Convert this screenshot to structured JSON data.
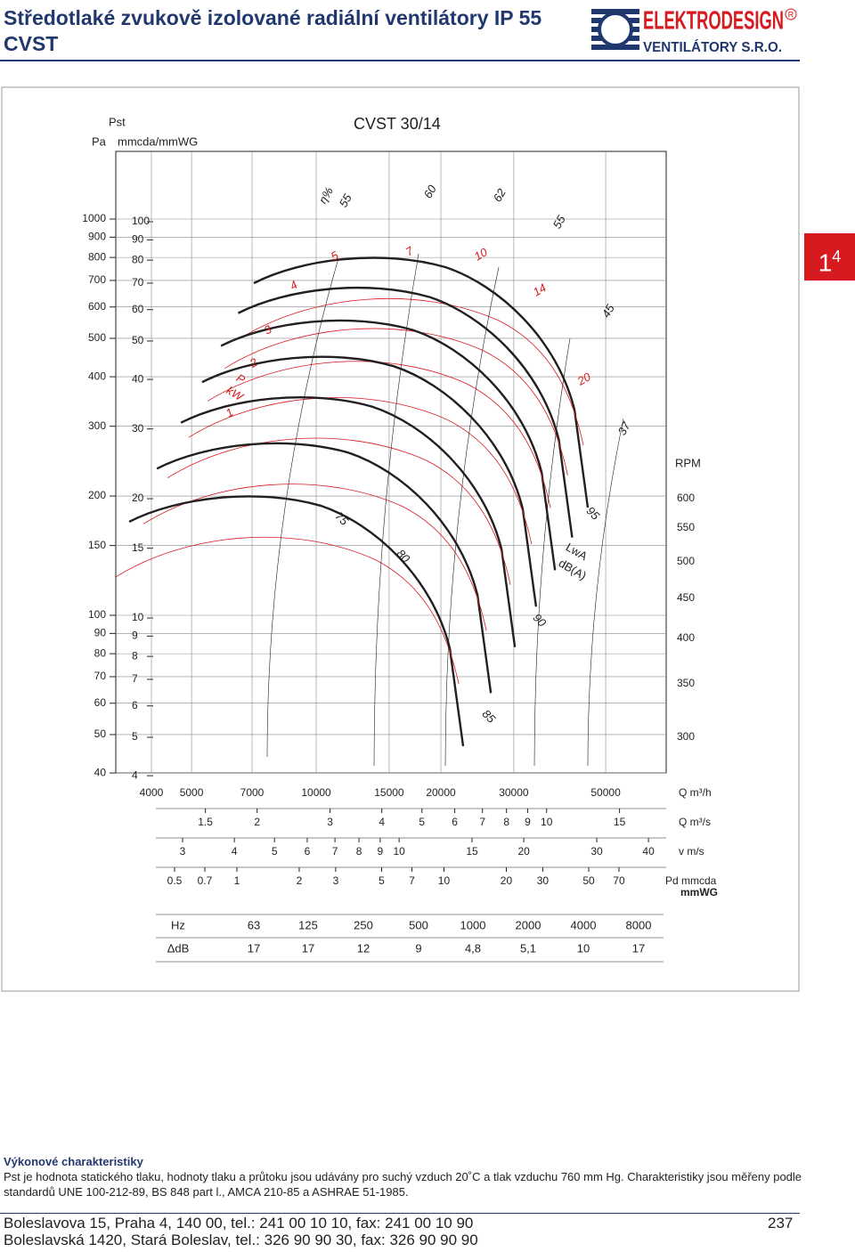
{
  "header": {
    "title_line1": "Středotlaké zvukově izolované radiální ventilátory IP 55",
    "title_line2": "CVST",
    "logo_brand": "ELEKTRODESIGN",
    "logo_sub": "VENTILÁTORY S.R.O.",
    "logo_reg": "R"
  },
  "tab": {
    "main": "1",
    "sup": "4"
  },
  "diagram": {
    "model": "CVST 30/14",
    "pst_label": "Pst",
    "pa_label": "Pa",
    "mmcda_label": "mmcda/mmWG",
    "rpm_label": "RPM",
    "pressure_pa": [
      1000,
      900,
      800,
      700,
      600,
      500,
      400,
      300,
      200,
      150,
      100,
      90,
      80,
      70,
      60,
      50,
      40
    ],
    "pressure_mmcda": [
      100,
      90,
      80,
      70,
      60,
      50,
      40,
      30,
      20,
      15,
      10,
      9,
      8,
      7,
      6,
      5,
      4
    ],
    "rpm": [
      600,
      550,
      500,
      450,
      400,
      350,
      300
    ],
    "flow_m3h": [
      4000,
      5000,
      7000,
      10000,
      15000,
      20000,
      30000,
      50000
    ],
    "flow_m3s": [
      1.5,
      2,
      3,
      4,
      5,
      6,
      7,
      8,
      9,
      10,
      15
    ],
    "velocity": [
      3,
      4,
      5,
      6,
      7,
      8,
      9,
      10,
      15,
      20,
      30,
      40
    ],
    "pd": [
      0.5,
      0.7,
      1,
      2,
      3,
      5,
      7,
      10,
      20,
      30,
      50,
      70
    ],
    "unit_m3h": "Q m³/h",
    "unit_m3s": "Q m³/s",
    "unit_v": "v m/s",
    "unit_pd": "Pd mmcda",
    "unit_pd2": "mmWG",
    "efficiency_label": "η%",
    "efficiency": [
      55,
      60,
      62,
      55,
      45,
      37
    ],
    "power_label_p": "P",
    "power_label_kw": "kW",
    "power": [
      1,
      2,
      3,
      4,
      5,
      7,
      10,
      14,
      20
    ],
    "noise": [
      75,
      80,
      85,
      90,
      95
    ],
    "noise_label1": "LwA",
    "noise_label2": "dB(A)"
  },
  "table": {
    "rows": [
      [
        "Hz",
        "63",
        "125",
        "250",
        "500",
        "1000",
        "2000",
        "4000",
        "8000"
      ],
      [
        "ΔdB",
        "17",
        "17",
        "12",
        "9",
        "4,8",
        "5,1",
        "10",
        "17"
      ]
    ]
  },
  "footer": {
    "section_title": "Výkonové charakteristiky",
    "text": "Pst je hodnota statického tlaku, hodnoty tlaku a průtoku jsou udávány pro suchý vzduch 20˚C a tlak vzduchu 760 mm Hg. Charakteristiky jsou měřeny podle standardů UNE 100-212-89, BS 848 part l., AMCA 210-85 a ASHRAE 51-1985.",
    "address1": "Boleslavova 15, Praha 4, 140 00, tel.: 241 00 10 10, fax: 241 00 10 90",
    "address2": "Boleslavská 1420, Stará Boleslav, tel.: 326 90 90 30, fax: 326 90 90 90",
    "page": "237"
  }
}
